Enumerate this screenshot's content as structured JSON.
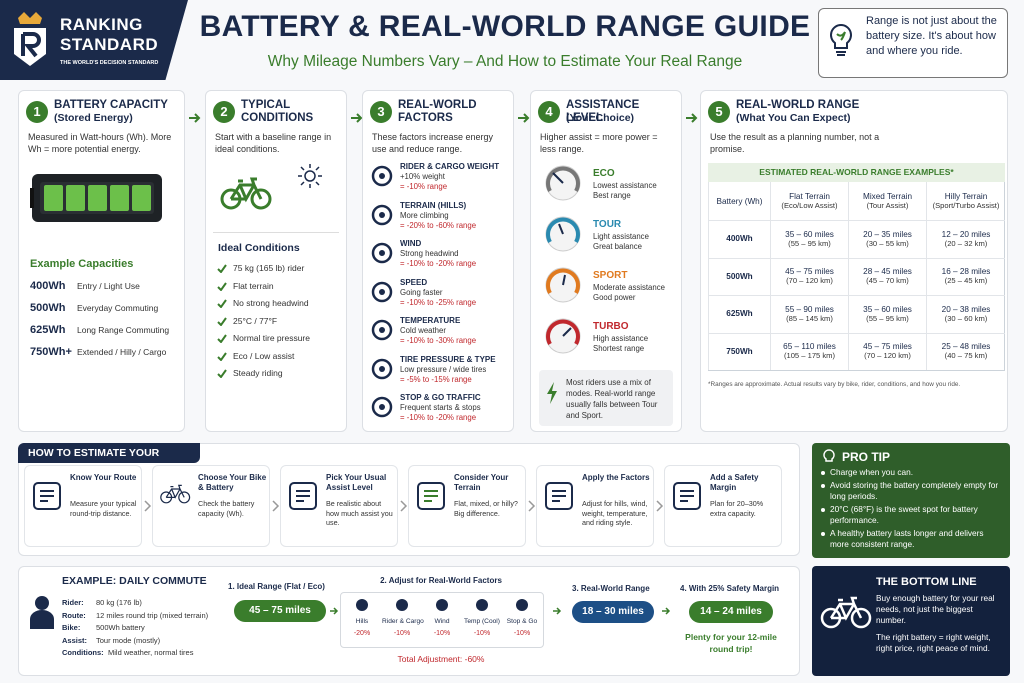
{
  "header": {
    "brand_line1": "RANKING",
    "brand_line2": "STANDARD",
    "brand_tagline": "THE WORLD'S DECISION STANDARD",
    "title": "BATTERY & REAL-WORLD RANGE GUIDE",
    "subtitle": "Why Mileage Numbers Vary – And How to Estimate Your Real Range",
    "note": "Range is not just about the battery size. It's about how and where you ride."
  },
  "steps": [
    {
      "number": "1",
      "title": "BATTERY CAPACITY",
      "subtitle": "(Stored Energy)",
      "text": "Measured in Watt-hours (Wh). More Wh = more potential energy.",
      "capacities_title": "Example Capacities",
      "capacities": [
        {
          "wh": "400Wh",
          "use": "Entry / Light Use"
        },
        {
          "wh": "500Wh",
          "use": "Everyday Commuting"
        },
        {
          "wh": "625Wh",
          "use": "Long Range Commuting"
        },
        {
          "wh": "750Wh+",
          "use": "Extended / Hilly / Cargo"
        }
      ]
    },
    {
      "number": "2",
      "title": "TYPICAL CONDITIONS",
      "text": "Start with a baseline range in ideal conditions.",
      "conditions_title": "Ideal Conditions",
      "conditions": [
        "75 kg (165 lb) rider",
        "Flat terrain",
        "No strong headwind",
        "25°C / 77°F",
        "Normal tire pressure",
        "Eco / Low assist",
        "Steady riding"
      ]
    },
    {
      "number": "3",
      "title": "REAL-WORLD FACTORS",
      "text": "These factors increase energy use and reduce range.",
      "factors": [
        {
          "name": "RIDER & CARGO WEIGHT",
          "detail": "+10% weight",
          "effect": "= -10% range"
        },
        {
          "name": "TERRAIN (HILLS)",
          "detail": "More climbing",
          "effect": "= -20% to -60% range"
        },
        {
          "name": "WIND",
          "detail": "Strong headwind",
          "effect": "= -10% to -20% range"
        },
        {
          "name": "SPEED",
          "detail": "Going faster",
          "effect": "= -10% to -25% range"
        },
        {
          "name": "TEMPERATURE",
          "detail": "Cold weather",
          "effect": "= -10% to -30% range"
        },
        {
          "name": "TIRE PRESSURE & TYPE",
          "detail": "Low pressure / wide tires",
          "effect": "= -5% to -15% range"
        },
        {
          "name": "STOP & GO TRAFFIC",
          "detail": "Frequent starts & stops",
          "effect": "= -10% to -20% range"
        }
      ]
    },
    {
      "number": "4",
      "title": "ASSISTANCE LEVEL",
      "subtitle": "(Your Choice)",
      "text": "Higher assist = more power = less range.",
      "modes": [
        {
          "name": "ECO",
          "line1": "Lowest assistance",
          "line2": "Best range"
        },
        {
          "name": "TOUR",
          "line1": "Light assistance",
          "line2": "Great balance"
        },
        {
          "name": "SPORT",
          "line1": "Moderate assistance",
          "line2": "Good power"
        },
        {
          "name": "TURBO",
          "line1": "High assistance",
          "line2": "Shortest range"
        }
      ],
      "note": "Most riders use a mix of modes. Real-world range usually falls between Tour and Sport."
    },
    {
      "number": "5",
      "title": "REAL-WORLD RANGE",
      "subtitle": "(What You Can Expect)",
      "text": "Use the result as a planning number, not a promise.",
      "table_title": "ESTIMATED REAL-WORLD RANGE EXAMPLES*",
      "headers": [
        {
          "main": "Battery (Wh)",
          "sub": null
        },
        {
          "main": "Flat Terrain",
          "sub": "(Eco/Low Assist)"
        },
        {
          "main": "Mixed Terrain",
          "sub": "(Tour Assist)"
        },
        {
          "main": "Hilly Terrain",
          "sub": "(Sport/Turbo Assist)"
        }
      ],
      "rows": [
        [
          {
            "main": "400Wh",
            "sub": null
          },
          {
            "main": "35 – 60 miles",
            "sub": "(55 – 95 km)"
          },
          {
            "main": "20 – 35 miles",
            "sub": "(30 – 55 km)"
          },
          {
            "main": "12 – 20 miles",
            "sub": "(20 – 32 km)"
          }
        ],
        [
          {
            "main": "500Wh",
            "sub": null
          },
          {
            "main": "45 – 75 miles",
            "sub": "(70 – 120 km)"
          },
          {
            "main": "28 – 45 miles",
            "sub": "(45 – 70 km)"
          },
          {
            "main": "16 – 28 miles",
            "sub": "(25 – 45 km)"
          }
        ],
        [
          {
            "main": "625Wh",
            "sub": null
          },
          {
            "main": "55 – 90 miles",
            "sub": "(85 – 145 km)"
          },
          {
            "main": "35 – 60 miles",
            "sub": "(55 – 95 km)"
          },
          {
            "main": "20 – 38 miles",
            "sub": "(30 – 60 km)"
          }
        ],
        [
          {
            "main": "750Wh",
            "sub": null
          },
          {
            "main": "65 – 110 miles",
            "sub": "(105 – 175 km)"
          },
          {
            "main": "45 – 75 miles",
            "sub": "(70 – 120 km)"
          },
          {
            "main": "25 – 48 miles",
            "sub": "(40 – 75 km)"
          }
        ]
      ],
      "footnote": "*Ranges are approximate. Actual results vary by bike, rider, conditions, and how you ride."
    }
  ],
  "how_to": {
    "title": "HOW TO ESTIMATE YOUR RANGE",
    "steps": [
      {
        "title": "Know Your Route",
        "text": "Measure your typical round-trip distance."
      },
      {
        "title": "Choose Your Bike & Battery",
        "text": "Check the battery capacity (Wh)."
      },
      {
        "title": "Pick Your Usual Assist Level",
        "text": "Be realistic about how much assist you use."
      },
      {
        "title": "Consider Your Terrain",
        "text": "Flat, mixed, or hilly? Big difference."
      },
      {
        "title": "Apply the Factors",
        "text": "Adjust for hills, wind, weight, temperature, and riding style."
      },
      {
        "title": "Add a Safety Margin",
        "text": "Plan for 20–30% extra capacity."
      }
    ]
  },
  "pro_tip": {
    "title": "PRO TIP",
    "items": [
      "Charge when you can.",
      "Avoid storing the battery completely empty for long periods.",
      "20°C (68°F) is the sweet spot for battery performance.",
      "A healthy battery lasts longer and delivers more consistent range."
    ]
  },
  "example": {
    "title": "EXAMPLE: DAILY COMMUTE",
    "details": [
      {
        "label": "Rider:",
        "value": "80 kg (176 lb)"
      },
      {
        "label": "Route:",
        "value": "12 miles round trip (mixed terrain)"
      },
      {
        "label": "Bike:",
        "value": "500Wh battery"
      },
      {
        "label": "Assist:",
        "value": "Tour mode (mostly)"
      },
      {
        "label": "Conditions:",
        "value": "Mild weather, normal tires"
      }
    ],
    "stage1_title": "1. Ideal Range (Flat / Eco)",
    "stage1_value": "45 – 75 miles",
    "stage2_title": "2. Adjust for Real-World Factors",
    "factors": [
      {
        "name": "Hills",
        "effect": "-20%"
      },
      {
        "name": "Rider & Cargo",
        "effect": "-10%"
      },
      {
        "name": "Wind",
        "effect": "-10%"
      },
      {
        "name": "Temp (Cool)",
        "effect": "-10%"
      },
      {
        "name": "Stop & Go",
        "effect": "-10%"
      }
    ],
    "total": "Total Adjustment: -60%",
    "stage3_title": "3. Real-World Range",
    "stage3_value": "18 – 30 miles",
    "stage4_title": "4. With 25% Safety Margin",
    "stage4_value": "14 – 24 miles",
    "note": "Plenty for your 12-mile round trip!"
  },
  "bottom_line": {
    "title": "THE BOTTOM LINE",
    "text1": "Buy enough battery for your real needs, not just the biggest number.",
    "text2": "The right battery = right weight, right price, right peace of mind."
  }
}
